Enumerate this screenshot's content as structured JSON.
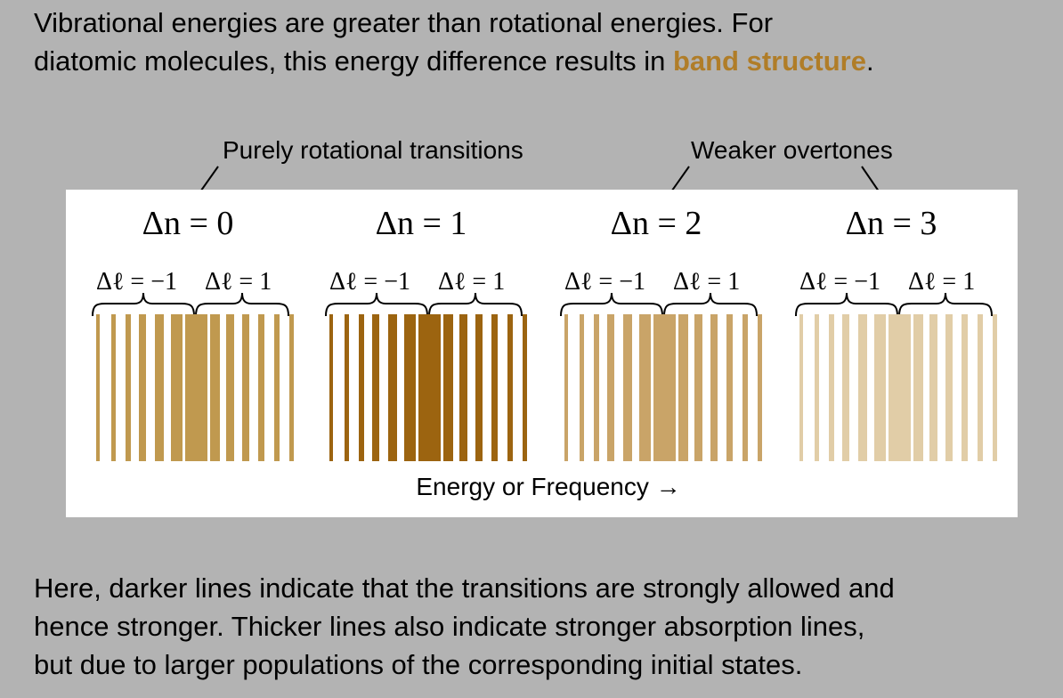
{
  "intro": {
    "line1": "Vibrational energies are greater than rotational energies.  For",
    "line2_prefix": "diatomic molecules, this energy difference results in ",
    "highlight": "band structure",
    "line2_suffix": "."
  },
  "callouts": {
    "rotational": "Purely rotational transitions",
    "overtones": "Weaker overtones"
  },
  "axis_label": "Energy or Frequency →",
  "bands": [
    {
      "dn_label": "Δn = 0",
      "color": "#c0994f",
      "dl_minus": "Δℓ = −1",
      "dl_plus": "Δℓ = 1"
    },
    {
      "dn_label": "Δn = 1",
      "color": "#9c6410",
      "dl_minus": "Δℓ = −1",
      "dl_plus": "Δℓ = 1"
    },
    {
      "dn_label": "Δn = 2",
      "color": "#c9a468",
      "dl_minus": "Δℓ = −1",
      "dl_plus": "Δℓ = 1"
    },
    {
      "dn_label": "Δn = 3",
      "color": "#e1cda7",
      "dl_minus": "Δℓ = −1",
      "dl_plus": "Δℓ = 1"
    }
  ],
  "outro": {
    "line1": "Here, darker lines indicate that the transitions are strongly allowed and",
    "line2": "hence stronger.  Thicker lines also indicate stronger absorption lines,",
    "line3": "but due to larger populations of the corresponding initial states."
  }
}
